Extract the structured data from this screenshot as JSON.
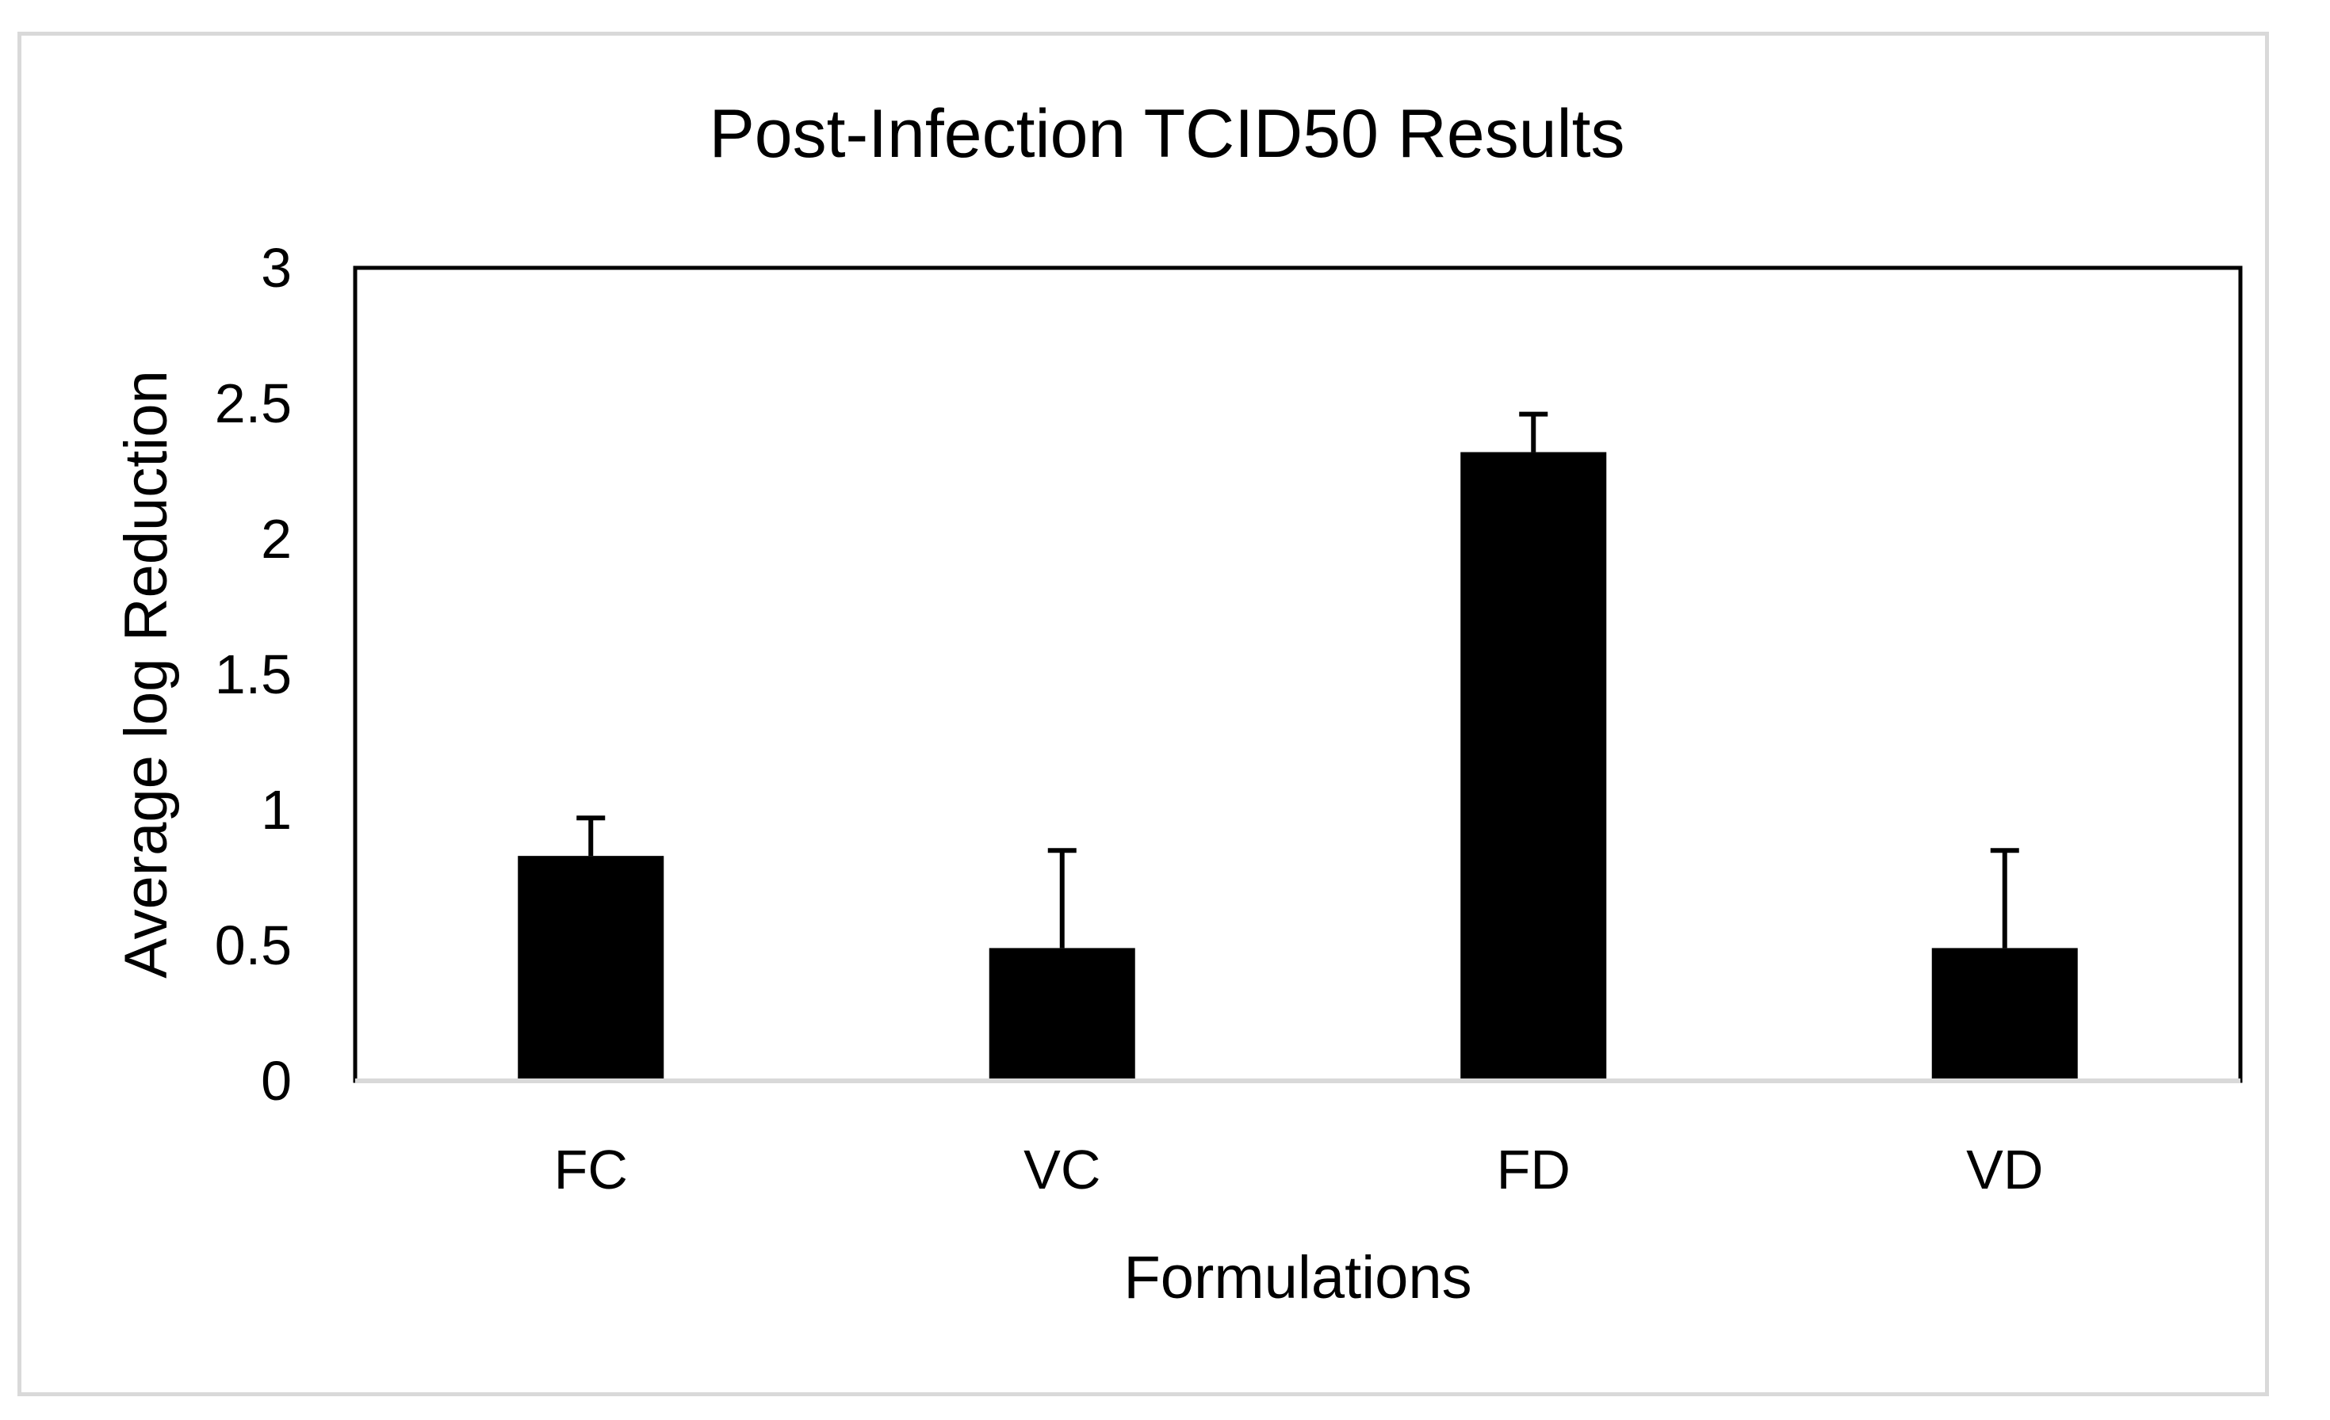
{
  "chart_data": {
    "type": "bar",
    "title": "Post-Infection TCID50 Results",
    "xlabel": "Formulations",
    "ylabel": "Average log Reduction",
    "categories": [
      "FC",
      "VC",
      "FD",
      "VD"
    ],
    "values": [
      0.83,
      0.49,
      2.32,
      0.49
    ],
    "error_plus": [
      0.14,
      0.36,
      0.14,
      0.36
    ],
    "ylim": [
      0,
      3
    ],
    "yticks": [
      "0",
      "0.5",
      "1",
      "1.5",
      "2",
      "2.5",
      "3"
    ],
    "ytick_values": [
      0,
      0.5,
      1,
      1.5,
      2,
      2.5,
      3
    ],
    "bar_color": "#000000",
    "grid": false,
    "legend": "none"
  }
}
